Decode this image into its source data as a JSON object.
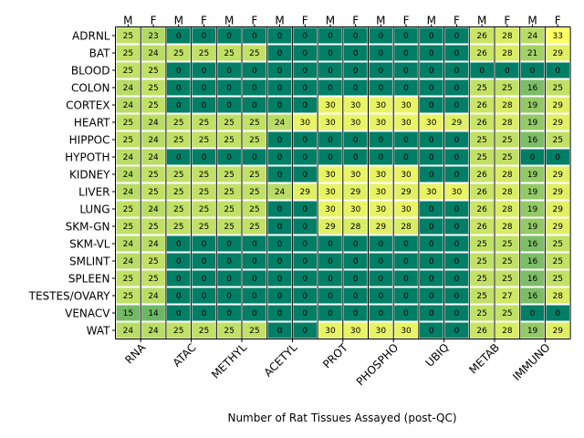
{
  "chart_data": {
    "type": "heatmap",
    "xlabel": "Number of Rat Tissues Assayed (post-QC)",
    "sex_labels": [
      "M",
      "F",
      "M",
      "F",
      "M",
      "F",
      "M",
      "F",
      "M",
      "F",
      "M",
      "F",
      "M",
      "F",
      "M",
      "F",
      "M",
      "F"
    ],
    "assays": [
      "RNA",
      "ATAC",
      "METHYL",
      "ACETYL",
      "PROT",
      "PHOSPHO",
      "UBIQ",
      "METAB",
      "IMMUNO"
    ],
    "tissues": [
      "ADRNL",
      "BAT",
      "BLOOD",
      "COLON",
      "CORTEX",
      "HEART",
      "HIPPOC",
      "HYPOTH",
      "KIDNEY",
      "LIVER",
      "LUNG",
      "SKM-GN",
      "SKM-VL",
      "SMLINT",
      "SPLEEN",
      "TESTES/OVARY",
      "VENACV",
      "WAT"
    ],
    "values": [
      [
        25,
        23,
        0,
        0,
        0,
        0,
        0,
        0,
        0,
        0,
        0,
        0,
        0,
        0,
        26,
        28,
        24,
        33
      ],
      [
        25,
        24,
        25,
        25,
        25,
        25,
        0,
        0,
        0,
        0,
        0,
        0,
        0,
        0,
        26,
        28,
        21,
        29
      ],
      [
        25,
        25,
        0,
        0,
        0,
        0,
        0,
        0,
        0,
        0,
        0,
        0,
        0,
        0,
        0,
        0,
        0,
        0
      ],
      [
        24,
        25,
        0,
        0,
        0,
        0,
        0,
        0,
        0,
        0,
        0,
        0,
        0,
        0,
        25,
        25,
        16,
        25
      ],
      [
        24,
        25,
        0,
        0,
        0,
        0,
        0,
        0,
        30,
        30,
        30,
        30,
        0,
        0,
        26,
        28,
        19,
        29
      ],
      [
        25,
        24,
        25,
        25,
        25,
        25,
        24,
        30,
        30,
        30,
        30,
        30,
        30,
        29,
        26,
        28,
        19,
        29
      ],
      [
        25,
        24,
        25,
        25,
        25,
        25,
        0,
        0,
        0,
        0,
        0,
        0,
        0,
        0,
        25,
        25,
        16,
        25
      ],
      [
        24,
        24,
        0,
        0,
        0,
        0,
        0,
        0,
        0,
        0,
        0,
        0,
        0,
        0,
        25,
        25,
        0,
        0
      ],
      [
        24,
        25,
        25,
        25,
        25,
        25,
        0,
        0,
        30,
        30,
        30,
        30,
        0,
        0,
        26,
        28,
        19,
        29
      ],
      [
        24,
        25,
        25,
        25,
        25,
        25,
        24,
        29,
        30,
        29,
        30,
        29,
        30,
        30,
        26,
        28,
        19,
        29
      ],
      [
        25,
        24,
        25,
        25,
        25,
        25,
        0,
        0,
        30,
        30,
        30,
        30,
        0,
        0,
        26,
        28,
        19,
        29
      ],
      [
        25,
        25,
        25,
        25,
        25,
        25,
        0,
        0,
        29,
        28,
        29,
        28,
        0,
        0,
        26,
        28,
        19,
        29
      ],
      [
        24,
        24,
        0,
        0,
        0,
        0,
        0,
        0,
        0,
        0,
        0,
        0,
        0,
        0,
        25,
        25,
        16,
        25
      ],
      [
        24,
        25,
        0,
        0,
        0,
        0,
        0,
        0,
        0,
        0,
        0,
        0,
        0,
        0,
        25,
        25,
        16,
        25
      ],
      [
        25,
        25,
        0,
        0,
        0,
        0,
        0,
        0,
        0,
        0,
        0,
        0,
        0,
        0,
        25,
        25,
        16,
        25
      ],
      [
        25,
        24,
        0,
        0,
        0,
        0,
        0,
        0,
        0,
        0,
        0,
        0,
        0,
        0,
        25,
        27,
        16,
        28
      ],
      [
        15,
        14,
        0,
        0,
        0,
        0,
        0,
        0,
        0,
        0,
        0,
        0,
        0,
        0,
        25,
        25,
        0,
        0
      ],
      [
        24,
        24,
        25,
        25,
        25,
        25,
        0,
        0,
        30,
        30,
        30,
        30,
        0,
        0,
        26,
        28,
        19,
        29
      ]
    ],
    "color_range": [
      0,
      33
    ],
    "colormap": "summer",
    "zero_color": "#007f66",
    "grid": false
  }
}
